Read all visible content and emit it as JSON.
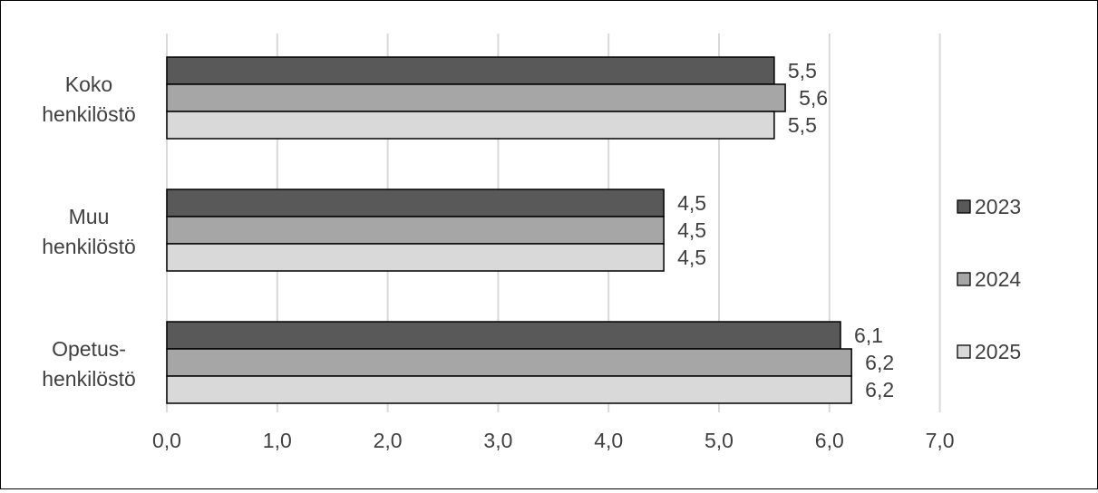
{
  "chart_data": {
    "type": "bar",
    "orientation": "horizontal",
    "categories": [
      "Koko henkilöstö",
      "Muu henkilöstö",
      "Opetus-henkilöstö"
    ],
    "category_lines": [
      [
        "Koko",
        "henkilöstö"
      ],
      [
        "Muu",
        "henkilöstö"
      ],
      [
        "Opetus-",
        "henkilöstö"
      ]
    ],
    "series": [
      {
        "name": "2023",
        "values": [
          5.5,
          4.5,
          6.1
        ],
        "labels": [
          "5,5",
          "4,5",
          "6,1"
        ],
        "color": "#595959"
      },
      {
        "name": "2024",
        "values": [
          5.6,
          4.5,
          6.2
        ],
        "labels": [
          "5,6",
          "4,5",
          "6,2"
        ],
        "color": "#a6a6a6"
      },
      {
        "name": "2025",
        "values": [
          5.5,
          4.5,
          6.2
        ],
        "labels": [
          "5,5",
          "4,5",
          "6,2"
        ],
        "color": "#d9d9d9"
      }
    ],
    "xlim": [
      0,
      7
    ],
    "x_ticks": [
      0,
      1,
      2,
      3,
      4,
      5,
      6,
      7
    ],
    "x_tick_labels": [
      "0,0",
      "1,0",
      "2,0",
      "3,0",
      "4,0",
      "5,0",
      "6,0",
      "7,0"
    ],
    "grid": true,
    "legend_position": "right",
    "title": "",
    "xlabel": "",
    "ylabel": ""
  }
}
